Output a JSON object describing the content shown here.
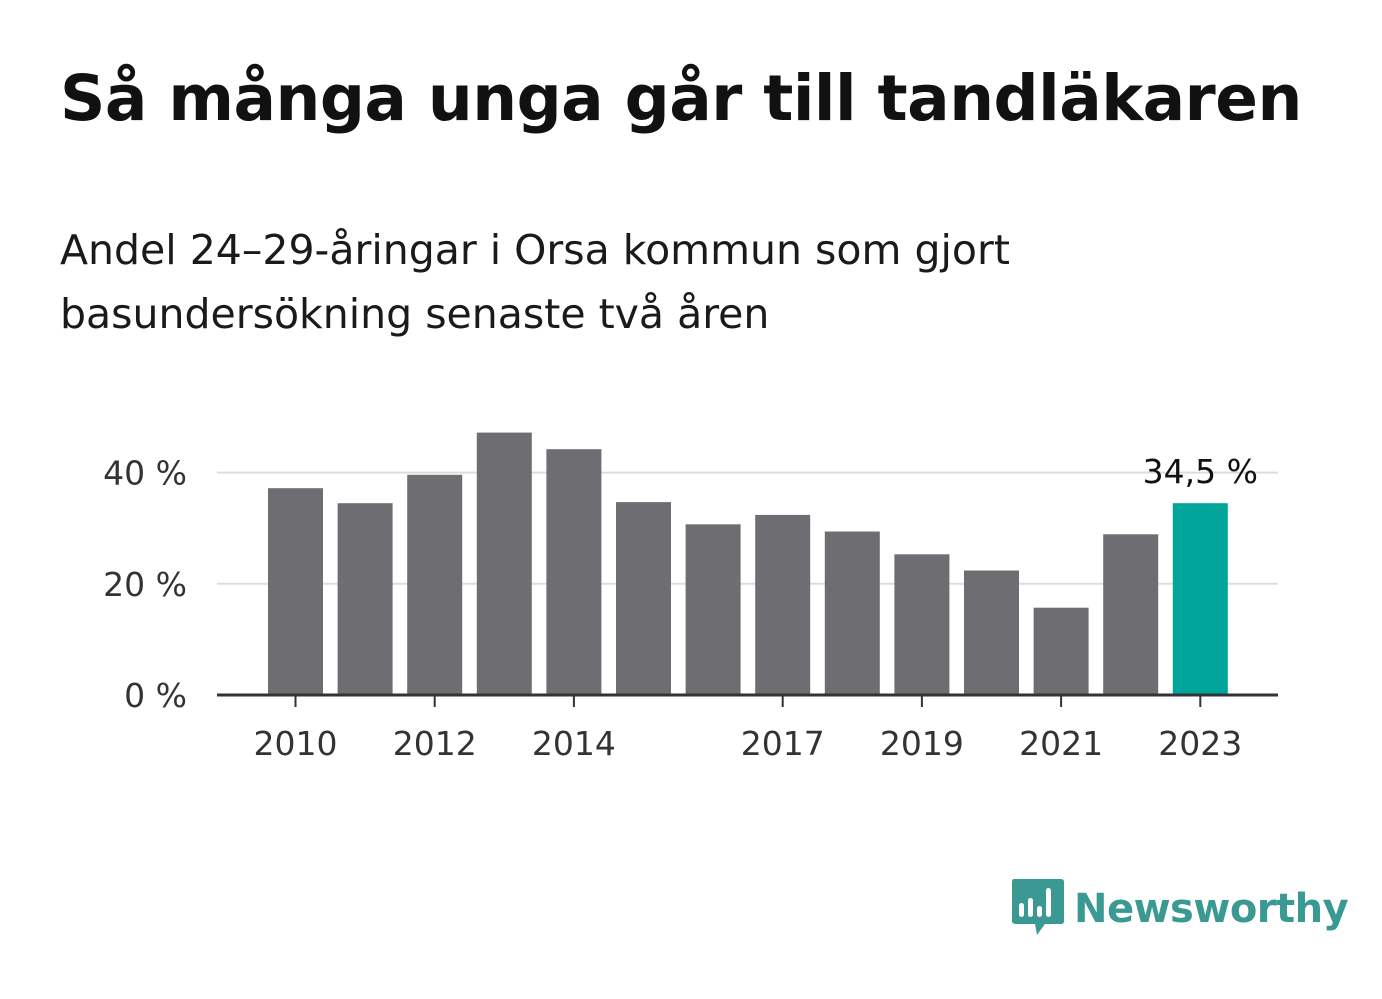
{
  "header": {
    "title": "Så många unga går till tandläkaren",
    "subtitle": "Andel 24–29-åringar i Orsa kommun som gjort basundersökning senaste två åren"
  },
  "chart_data": {
    "type": "bar",
    "categories": [
      "2010",
      "2011",
      "2012",
      "2013",
      "2014",
      "2015",
      "2016",
      "2017",
      "2018",
      "2019",
      "2020",
      "2021",
      "2022",
      "2023"
    ],
    "x_tick_labels": [
      "2010",
      "2012",
      "2014",
      "2017",
      "2019",
      "2021",
      "2023"
    ],
    "values": [
      37.2,
      34.5,
      39.6,
      47.2,
      44.2,
      34.7,
      30.7,
      32.4,
      29.4,
      25.3,
      22.4,
      15.7,
      28.9,
      34.5
    ],
    "ylim": [
      0,
      50
    ],
    "y_ticks": [
      0,
      20,
      40
    ],
    "y_tick_labels": [
      "0 %",
      "20 %",
      "40 %"
    ],
    "highlight_index": 13,
    "highlight_label": "34,5 %",
    "colors": {
      "bar": "#6e6d72",
      "highlight": "#00a499",
      "grid": "#dddddd",
      "axis": "#333333"
    },
    "grid": true
  },
  "brand": {
    "name": "Newsworthy",
    "logo_icon": "bar-chart-speech-bubble-icon",
    "color": "#3a9a93"
  }
}
